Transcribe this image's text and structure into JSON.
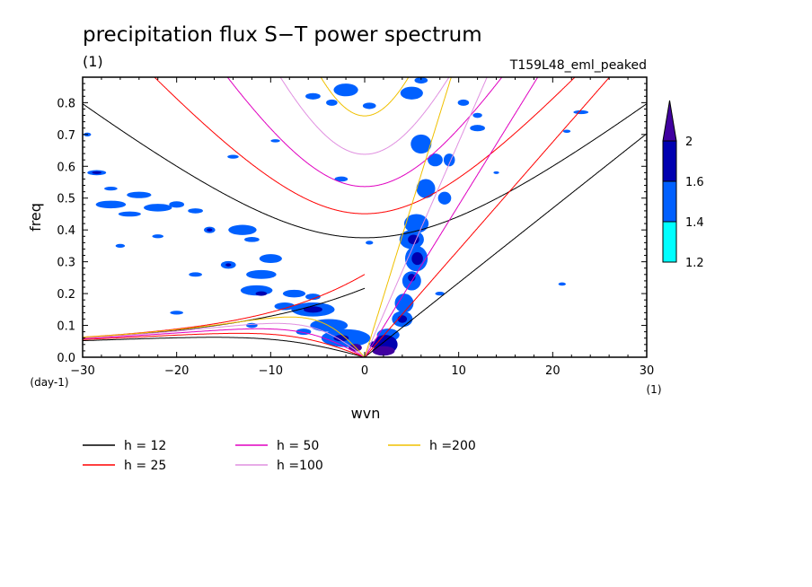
{
  "chart_data": {
    "type": "contour",
    "title": "precipitation flux S−T power spectrum",
    "units_left": "(1)",
    "run_label": "T159L48_eml_peaked",
    "xlabel": "wvn",
    "ylabel": "freq",
    "x_units": "(1)",
    "y_units": "(day-1)",
    "xlim": [
      -30,
      30
    ],
    "ylim": [
      0,
      0.88
    ],
    "x_ticks": [
      -30,
      -20,
      -10,
      0,
      10,
      20,
      30
    ],
    "x_tick_labels": [
      "−30",
      "−20",
      "−10",
      "0",
      "10",
      "20",
      "30"
    ],
    "y_ticks": [
      0,
      0.1,
      0.2,
      0.3,
      0.4,
      0.5,
      0.6,
      0.7,
      0.8
    ],
    "y_tick_labels": [
      "0.0",
      "0.1",
      "0.2",
      "0.3",
      "0.4",
      "0.5",
      "0.6",
      "0.7",
      "0.8"
    ],
    "colorbar": {
      "levels": [
        1.2,
        1.4,
        1.6,
        2
      ],
      "level_labels": [
        "1.2",
        "1.4",
        "1.6",
        "2"
      ],
      "colors": [
        "#00ffff",
        "#0060ff",
        "#0000b0",
        "#4000a0"
      ]
    },
    "dispersion_curves": [
      {
        "label": "h = 12",
        "h": 12,
        "color": "#000000"
      },
      {
        "label": "h = 25",
        "h": 25,
        "color": "#ff0000"
      },
      {
        "label": "h = 50",
        "h": 50,
        "color": "#e000c0"
      },
      {
        "label": "h =100",
        "h": 100,
        "color": "#e090e0"
      },
      {
        "label": "h =200",
        "h": 200,
        "color": "#f0c000"
      }
    ],
    "contour_blobs": [
      [
        -29.5,
        0.7,
        0.4,
        0.006,
        1
      ],
      [
        -28.5,
        0.58,
        1.0,
        0.008,
        1
      ],
      [
        -28.5,
        0.58,
        0.5,
        0.004,
        2
      ],
      [
        -27,
        0.48,
        1.6,
        0.012,
        1
      ],
      [
        -24,
        0.51,
        1.3,
        0.01,
        1
      ],
      [
        -25,
        0.45,
        1.2,
        0.008,
        1
      ],
      [
        -22,
        0.47,
        1.5,
        0.012,
        1
      ],
      [
        -20,
        0.48,
        0.8,
        0.01,
        1
      ],
      [
        -18,
        0.46,
        0.8,
        0.008,
        1
      ],
      [
        -16.5,
        0.4,
        0.6,
        0.01,
        1
      ],
      [
        -16.5,
        0.4,
        0.3,
        0.005,
        2
      ],
      [
        -22,
        0.38,
        0.6,
        0.006,
        1
      ],
      [
        -26,
        0.35,
        0.5,
        0.006,
        1
      ],
      [
        -18,
        0.26,
        0.7,
        0.007,
        1
      ],
      [
        -13,
        0.4,
        1.5,
        0.016,
        1
      ],
      [
        -12,
        0.37,
        0.8,
        0.008,
        1
      ],
      [
        -10,
        0.31,
        1.2,
        0.014,
        1
      ],
      [
        -14.5,
        0.29,
        0.8,
        0.012,
        1
      ],
      [
        -14.5,
        0.29,
        0.3,
        0.005,
        2
      ],
      [
        -11,
        0.26,
        1.6,
        0.014,
        1
      ],
      [
        -11.5,
        0.21,
        1.7,
        0.016,
        1
      ],
      [
        -11,
        0.2,
        0.6,
        0.007,
        2
      ],
      [
        -7.5,
        0.2,
        1.2,
        0.012,
        1
      ],
      [
        -5.5,
        0.19,
        0.8,
        0.01,
        1
      ],
      [
        -8.5,
        0.16,
        1.1,
        0.012,
        1
      ],
      [
        -5.5,
        0.15,
        2.3,
        0.022,
        1
      ],
      [
        -5.5,
        0.15,
        1.0,
        0.01,
        2
      ],
      [
        -3.8,
        0.1,
        2.0,
        0.02,
        1
      ],
      [
        -2.0,
        0.06,
        2.6,
        0.028,
        1
      ],
      [
        -2.5,
        0.06,
        0.8,
        0.01,
        2
      ],
      [
        -1.0,
        0.03,
        0.7,
        0.012,
        3
      ],
      [
        -6.5,
        0.08,
        0.8,
        0.01,
        1
      ],
      [
        -12,
        0.1,
        0.6,
        0.008,
        1
      ],
      [
        -2.0,
        0.84,
        1.3,
        0.02,
        1
      ],
      [
        -5.5,
        0.82,
        0.8,
        0.01,
        1
      ],
      [
        0.5,
        0.79,
        0.7,
        0.01,
        1
      ],
      [
        -3.5,
        0.8,
        0.6,
        0.01,
        1
      ],
      [
        5,
        0.83,
        1.2,
        0.02,
        1
      ],
      [
        6,
        0.87,
        0.7,
        0.01,
        1
      ],
      [
        -14,
        0.63,
        0.6,
        0.006,
        1
      ],
      [
        -9.5,
        0.68,
        0.5,
        0.005,
        1
      ],
      [
        -2.5,
        0.56,
        0.7,
        0.008,
        1
      ],
      [
        0.5,
        0.36,
        0.4,
        0.006,
        1
      ],
      [
        -20,
        0.14,
        0.7,
        0.006,
        1
      ],
      [
        -27,
        0.53,
        0.7,
        0.006,
        1
      ],
      [
        6,
        0.67,
        1.1,
        0.03,
        1
      ],
      [
        7.5,
        0.62,
        0.8,
        0.02,
        1
      ],
      [
        6.5,
        0.53,
        1.0,
        0.03,
        1
      ],
      [
        8.5,
        0.5,
        0.7,
        0.02,
        1
      ],
      [
        9,
        0.62,
        0.6,
        0.02,
        1
      ],
      [
        5.5,
        0.42,
        1.3,
        0.03,
        1
      ],
      [
        5.0,
        0.37,
        1.3,
        0.03,
        1
      ],
      [
        5.2,
        0.37,
        0.6,
        0.015,
        2
      ],
      [
        5.5,
        0.31,
        1.2,
        0.04,
        1
      ],
      [
        5.6,
        0.31,
        0.6,
        0.02,
        2
      ],
      [
        5.0,
        0.24,
        1.0,
        0.03,
        1
      ],
      [
        5.0,
        0.25,
        0.4,
        0.012,
        2
      ],
      [
        4.2,
        0.17,
        1.0,
        0.03,
        1
      ],
      [
        4.0,
        0.12,
        1.1,
        0.025,
        1
      ],
      [
        4.0,
        0.12,
        0.5,
        0.012,
        2
      ],
      [
        2.5,
        0.07,
        1.2,
        0.02,
        1
      ],
      [
        2.2,
        0.04,
        1.3,
        0.03,
        2
      ],
      [
        2.0,
        0.02,
        1.2,
        0.015,
        3
      ],
      [
        1.0,
        0.04,
        0.5,
        0.01,
        2
      ],
      [
        12,
        0.72,
        0.8,
        0.01,
        1
      ],
      [
        10.5,
        0.8,
        0.6,
        0.01,
        1
      ],
      [
        12,
        0.76,
        0.5,
        0.008,
        1
      ],
      [
        21,
        0.23,
        0.4,
        0.005,
        1
      ],
      [
        21.5,
        0.71,
        0.4,
        0.005,
        1
      ],
      [
        23,
        0.77,
        0.8,
        0.006,
        1
      ],
      [
        8,
        0.2,
        0.5,
        0.006,
        1
      ],
      [
        14,
        0.58,
        0.3,
        0.004,
        1
      ]
    ]
  }
}
